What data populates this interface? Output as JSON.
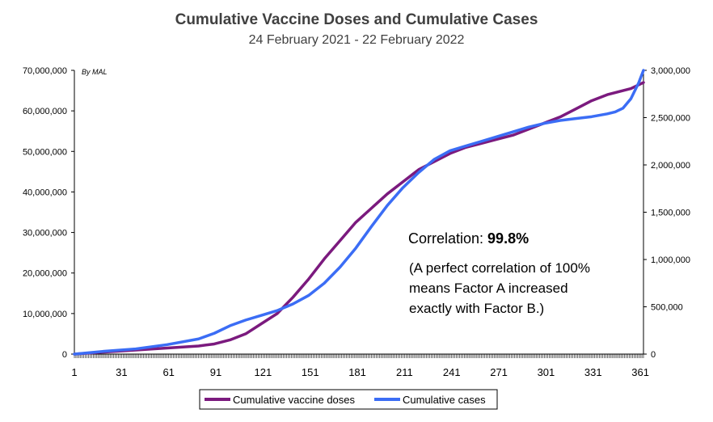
{
  "chart_data": {
    "type": "line",
    "title": "Cumulative Vaccine Doses and Cumulative Cases",
    "subtitle": "24 February 2021 - 22 February 2022",
    "byline": "By MAL",
    "x_ticks": [
      1,
      31,
      61,
      91,
      121,
      151,
      181,
      211,
      241,
      271,
      301,
      331,
      361
    ],
    "xlim": [
      1,
      363
    ],
    "y_left": {
      "ylim": [
        0,
        70000000
      ],
      "ticks": [
        "0",
        "10,000,000",
        "20,000,000",
        "30,000,000",
        "40,000,000",
        "50,000,000",
        "60,000,000",
        "70,000,000"
      ]
    },
    "y_right": {
      "ylim": [
        0,
        3000000
      ],
      "ticks": [
        "0",
        "500,000",
        "1,000,000",
        "1,500,000",
        "2,000,000",
        "2,500,000",
        "3,000,000"
      ]
    },
    "series": [
      {
        "name": "Cumulative vaccine doses",
        "axis": "left",
        "color": "#7B1A7E",
        "x": [
          1,
          20,
          40,
          60,
          80,
          90,
          100,
          110,
          120,
          130,
          140,
          150,
          160,
          170,
          180,
          190,
          200,
          210,
          220,
          230,
          240,
          250,
          260,
          270,
          280,
          290,
          300,
          310,
          320,
          330,
          340,
          350,
          355,
          363
        ],
        "y": [
          0,
          500000,
          1000000,
          1500000,
          2000000,
          2500000,
          3500000,
          5000000,
          7500000,
          10000000,
          14000000,
          18500000,
          23500000,
          28000000,
          32500000,
          36000000,
          39500000,
          42500000,
          45500000,
          47500000,
          49500000,
          51000000,
          52000000,
          53000000,
          54000000,
          55500000,
          57000000,
          58500000,
          60500000,
          62500000,
          64000000,
          65000000,
          65500000,
          67000000
        ]
      },
      {
        "name": "Cumulative cases",
        "axis": "right",
        "color": "#3B6DF5",
        "x": [
          1,
          20,
          40,
          60,
          80,
          90,
          100,
          110,
          120,
          130,
          140,
          150,
          160,
          170,
          180,
          190,
          200,
          210,
          220,
          230,
          240,
          250,
          260,
          270,
          280,
          290,
          300,
          310,
          320,
          330,
          340,
          345,
          350,
          355,
          360,
          363
        ],
        "y": [
          0,
          30000,
          55000,
          100000,
          160000,
          220000,
          300000,
          360000,
          410000,
          460000,
          530000,
          620000,
          750000,
          920000,
          1120000,
          1350000,
          1570000,
          1760000,
          1920000,
          2060000,
          2150000,
          2200000,
          2250000,
          2300000,
          2350000,
          2400000,
          2440000,
          2470000,
          2490000,
          2510000,
          2540000,
          2560000,
          2600000,
          2700000,
          2870000,
          3000000
        ]
      }
    ],
    "annotation": {
      "corr_label": "Correlation: ",
      "corr_value": "99.8%",
      "line1": "(A perfect correlation of 100%",
      "line2": "means Factor A increased",
      "line3": "exactly with Factor B.)"
    },
    "legend_position": "bottom",
    "grid": false
  }
}
